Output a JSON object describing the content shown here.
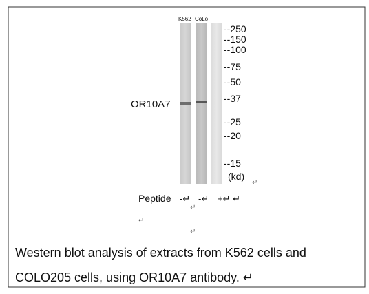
{
  "figure": {
    "lane_labels": [
      "K562",
      "CoLo"
    ],
    "protein_label": "OR10A7",
    "markers": [
      "--250",
      "--150",
      "--100",
      "--75",
      "--50",
      "--37",
      "--25",
      "--20",
      "--15",
      "(kd)"
    ],
    "peptide": {
      "label": "Peptide",
      "signs": [
        "-↵",
        "-↵",
        "+↵ ↵"
      ]
    },
    "caption": [
      "Western blot analysis of extracts from K562 cells and",
      "COLO205 cells, using OR10A7 antibody. ↵"
    ]
  }
}
